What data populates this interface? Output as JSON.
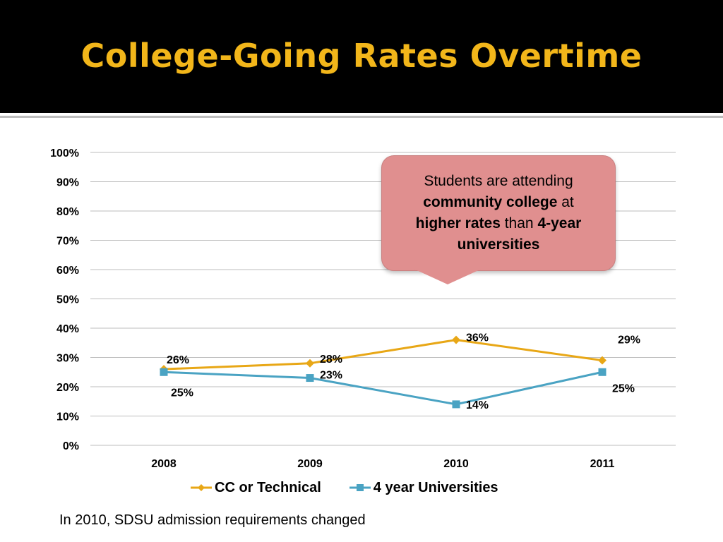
{
  "slide": {
    "title": "College-Going Rates Overtime"
  },
  "callout": {
    "p1": "Students are attending ",
    "b1": "community college",
    "p2": " at ",
    "b2": "higher rates",
    "p3": " than ",
    "b3": "4-year universities"
  },
  "footnote": "In 2010, SDSU admission requirements changed",
  "chart_data": {
    "type": "line",
    "categories": [
      "2008",
      "2009",
      "2010",
      "2011"
    ],
    "ylim": [
      0,
      100
    ],
    "ytick_labels": [
      "0%",
      "10%",
      "20%",
      "30%",
      "40%",
      "50%",
      "60%",
      "70%",
      "80%",
      "90%",
      "100%"
    ],
    "grid": true,
    "legend_position": "bottom",
    "series": [
      {
        "name": "CC or Technical",
        "values": [
          26,
          28,
          36,
          29
        ],
        "labels": [
          "26%",
          "28%",
          "36%",
          "29%"
        ],
        "color": "#e8a716",
        "marker": "diamond"
      },
      {
        "name": "4 year Universities",
        "values": [
          25,
          23,
          14,
          25
        ],
        "labels": [
          "25%",
          "23%",
          "14%",
          "25%"
        ],
        "color": "#4aa3c3",
        "marker": "square"
      }
    ]
  }
}
